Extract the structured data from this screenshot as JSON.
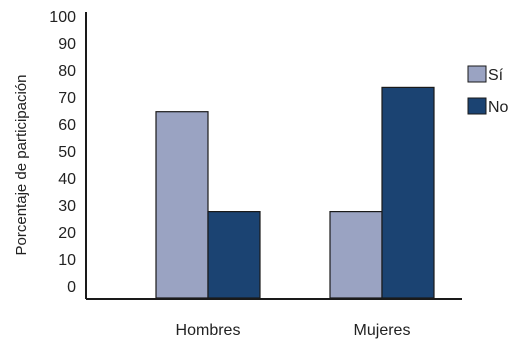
{
  "chart_data": {
    "type": "bar",
    "categories": [
      "Hombres",
      "Mujeres"
    ],
    "series": [
      {
        "name": "Sí",
        "values": [
          69,
          32
        ],
        "color": "#9aa3c2"
      },
      {
        "name": "No",
        "values": [
          32,
          78
        ],
        "color": "#1b4372"
      }
    ],
    "ylabel": "Porcentaje de participación",
    "xlabel": "",
    "ylim": [
      0,
      100
    ],
    "yticks": [
      0,
      10,
      20,
      30,
      40,
      50,
      60,
      70,
      80,
      90,
      100
    ],
    "grid": false,
    "legend_position": "right"
  }
}
